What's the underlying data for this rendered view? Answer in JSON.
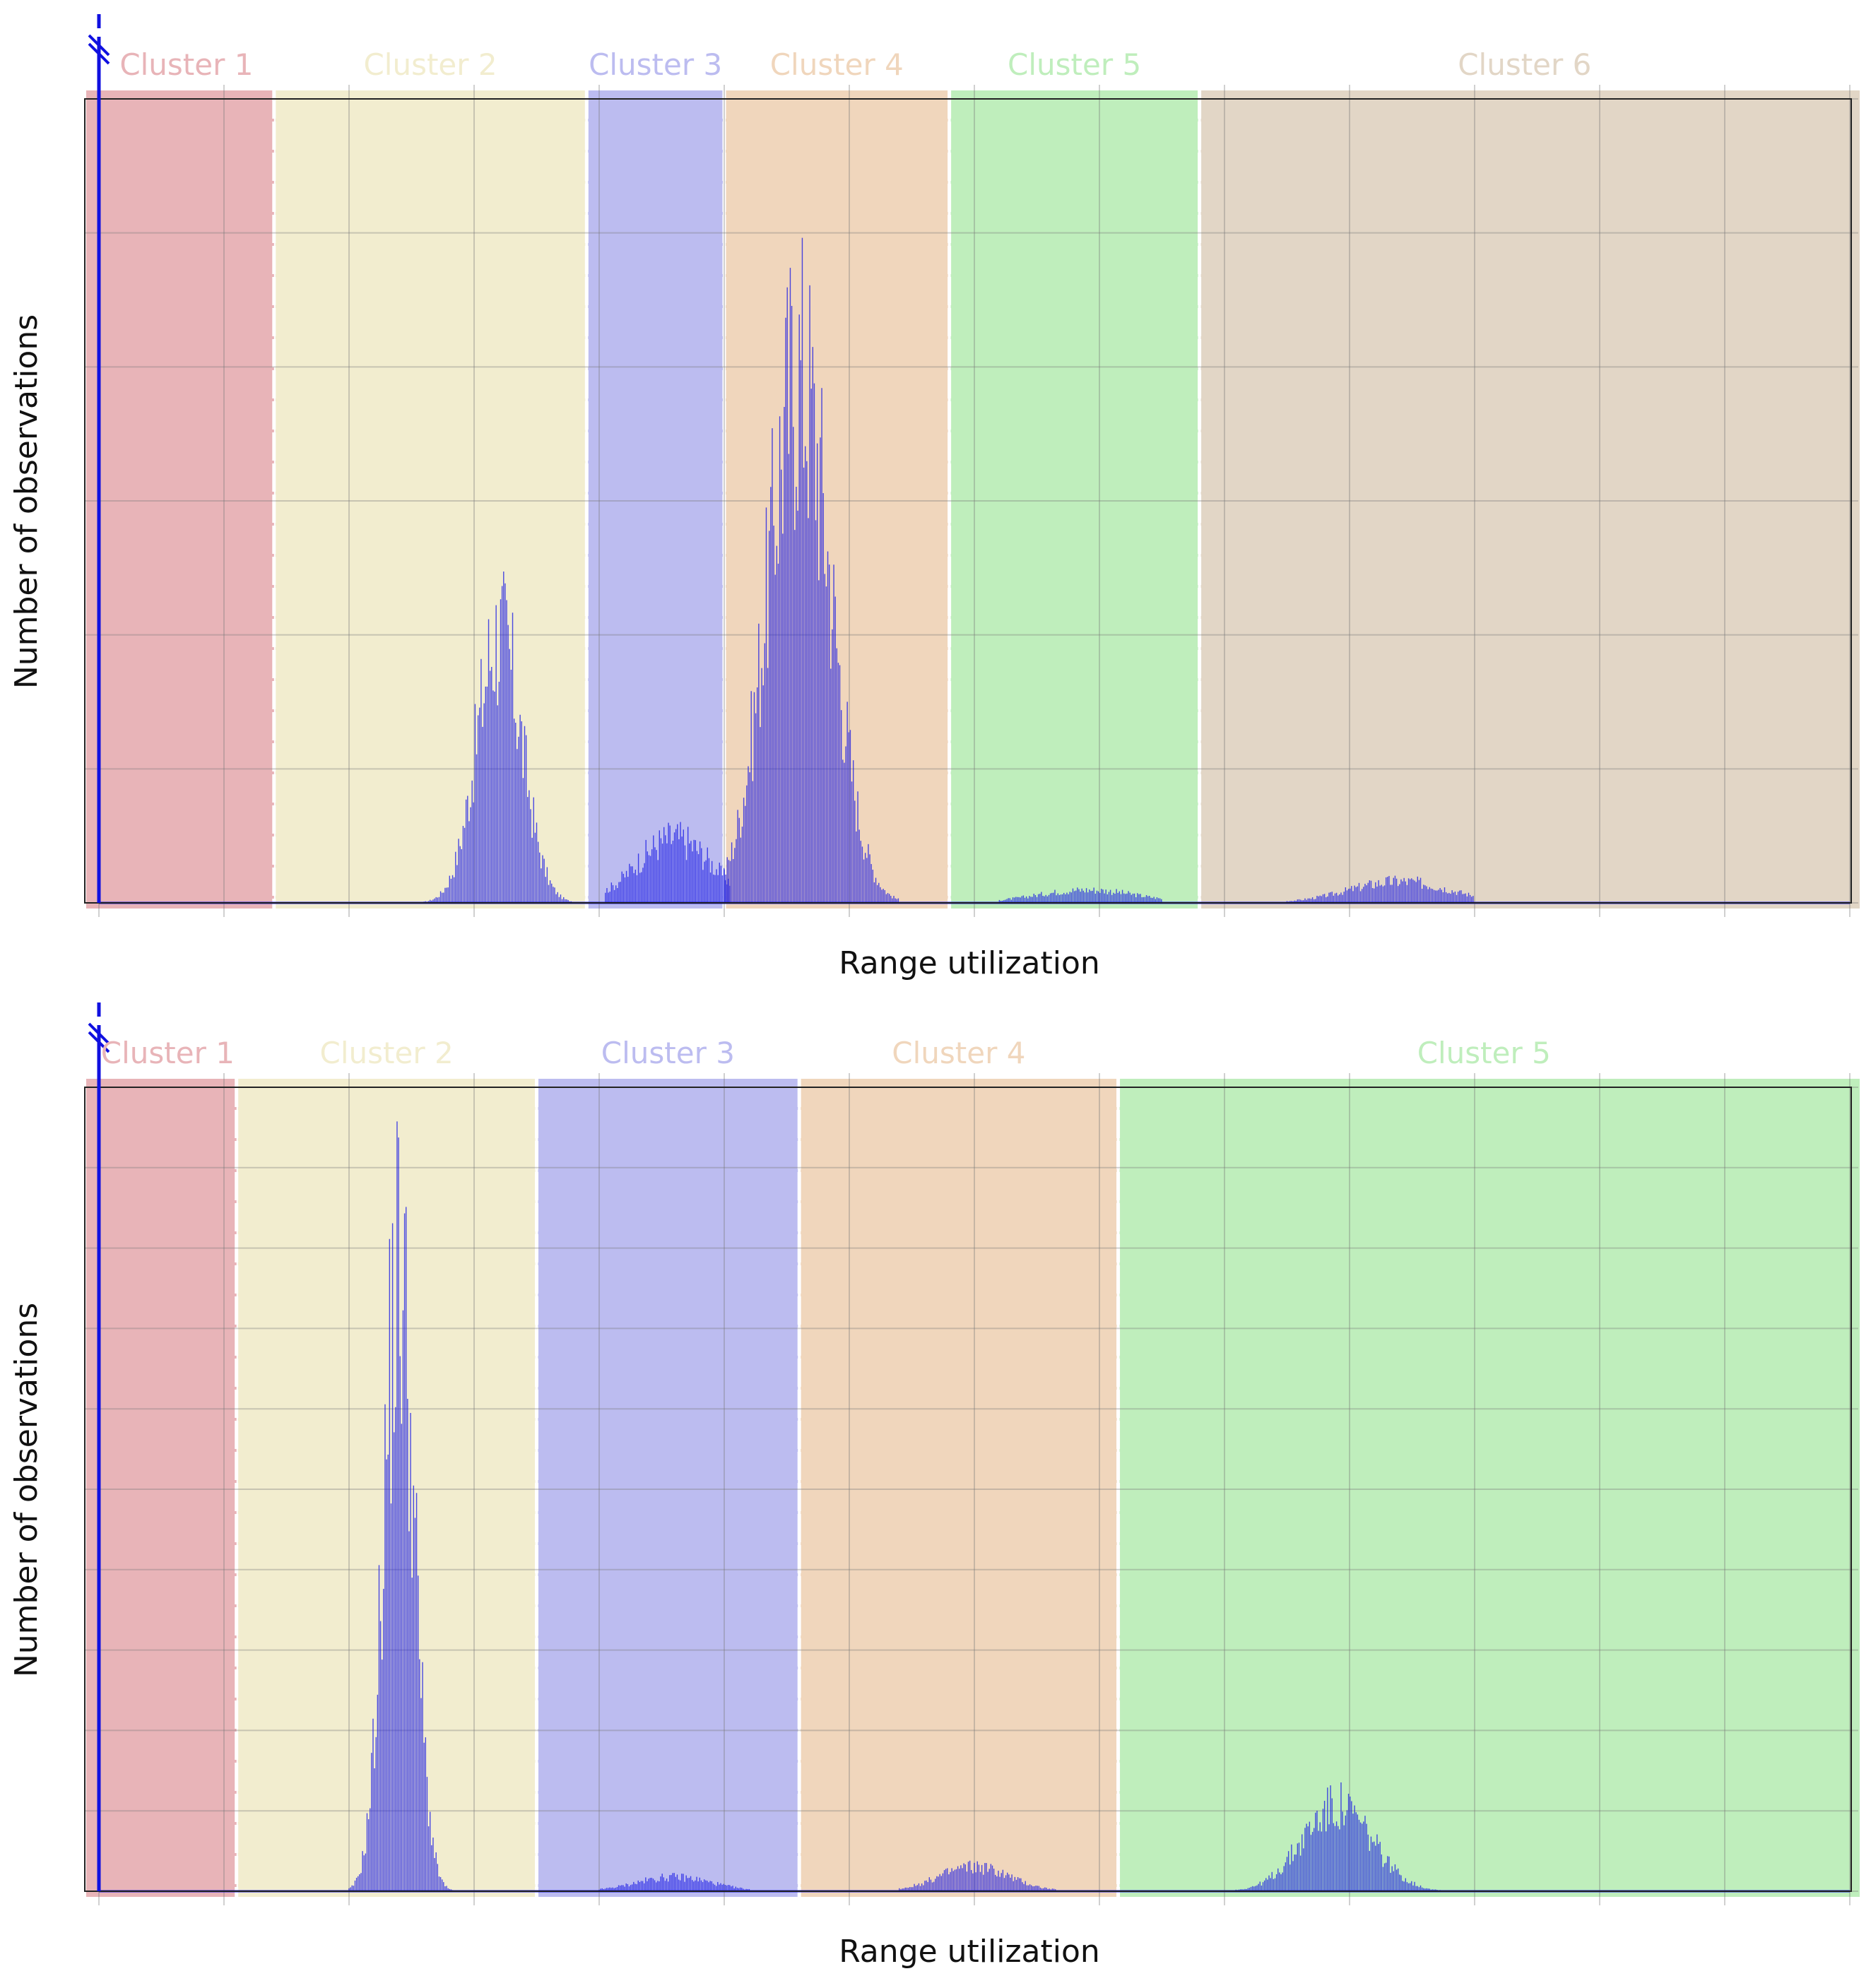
{
  "chart_data": [
    {
      "type": "bar",
      "title": "",
      "xlabel": "Range utilization",
      "ylabel": "Number of observations",
      "xlim": [
        0,
        14
      ],
      "ylim": [
        0,
        6
      ],
      "x_gridlines": [
        0,
        1,
        2,
        3,
        4,
        5,
        6,
        7,
        8,
        9,
        10,
        11,
        12,
        13,
        14
      ],
      "y_gridlines": [
        0,
        1,
        2,
        3,
        4,
        5,
        6
      ],
      "grid": true,
      "ticks_labeled": false,
      "y_axis_break": true,
      "series_color": "#1a1ae6",
      "clusters": [
        {
          "label": "Cluster 1",
          "range": [
            0,
            1.4
          ],
          "color": "#e8b4b8"
        },
        {
          "label": "Cluster 2",
          "range": [
            1.4,
            3.9
          ],
          "color": "#f2edcf"
        },
        {
          "label": "Cluster 3",
          "range": [
            3.9,
            5.0
          ],
          "color": "#bcbcf0"
        },
        {
          "label": "Cluster 4",
          "range": [
            5.0,
            6.8
          ],
          "color": "#f0d6bc"
        },
        {
          "label": "Cluster 5",
          "range": [
            6.8,
            8.8
          ],
          "color": "#bfeebc"
        },
        {
          "label": "Cluster 6",
          "range": [
            8.8,
            14.0
          ],
          "color": "#e2d6c6"
        }
      ],
      "distribution_peaks": [
        {
          "center": 3.2,
          "spread": 0.18,
          "peak": 2.5,
          "range": [
            2.6,
            3.85
          ]
        },
        {
          "center": 4.6,
          "spread": 0.3,
          "peak": 0.6,
          "range": [
            4.05,
            5.05
          ]
        },
        {
          "center": 5.6,
          "spread": 0.25,
          "peak": 4.95,
          "range": [
            5.0,
            6.4
          ]
        },
        {
          "center": 7.9,
          "spread": 0.4,
          "peak": 0.12,
          "range": [
            7.2,
            8.5
          ]
        },
        {
          "center": 10.4,
          "spread": 0.4,
          "peak": 0.2,
          "range": [
            9.5,
            11.0
          ]
        }
      ]
    },
    {
      "type": "bar",
      "title": "",
      "xlabel": "Range utilization",
      "ylabel": "Number of observations",
      "xlim": [
        0,
        14
      ],
      "ylim": [
        0,
        10
      ],
      "x_gridlines": [
        0,
        1,
        2,
        3,
        4,
        5,
        6,
        7,
        8,
        9,
        10,
        11,
        12,
        13,
        14
      ],
      "y_gridlines": [
        0,
        1,
        2,
        3,
        4,
        5,
        6,
        7,
        8,
        9,
        10
      ],
      "grid": true,
      "ticks_labeled": false,
      "y_axis_break": true,
      "series_color": "#1a1ae6",
      "clusters": [
        {
          "label": "Cluster 1",
          "range": [
            0,
            1.1
          ],
          "color": "#e8b4b8"
        },
        {
          "label": "Cluster 2",
          "range": [
            1.1,
            3.5
          ],
          "color": "#f2edcf"
        },
        {
          "label": "Cluster 3",
          "range": [
            3.5,
            5.6
          ],
          "color": "#bcbcf0"
        },
        {
          "label": "Cluster 4",
          "range": [
            5.6,
            8.15
          ],
          "color": "#f0d6bc"
        },
        {
          "label": "Cluster 5",
          "range": [
            8.15,
            14.0
          ],
          "color": "#bfeebc"
        }
      ],
      "distribution_peaks": [
        {
          "center": 2.4,
          "spread": 0.12,
          "peak": 9.65,
          "range": [
            2.0,
            2.9
          ]
        },
        {
          "center": 4.6,
          "spread": 0.3,
          "peak": 0.22,
          "range": [
            4.0,
            5.2
          ]
        },
        {
          "center": 7.0,
          "spread": 0.28,
          "peak": 0.38,
          "range": [
            6.4,
            7.65
          ]
        },
        {
          "center": 9.9,
          "spread": 0.28,
          "peak": 1.3,
          "range": [
            8.9,
            10.75
          ]
        }
      ]
    }
  ]
}
